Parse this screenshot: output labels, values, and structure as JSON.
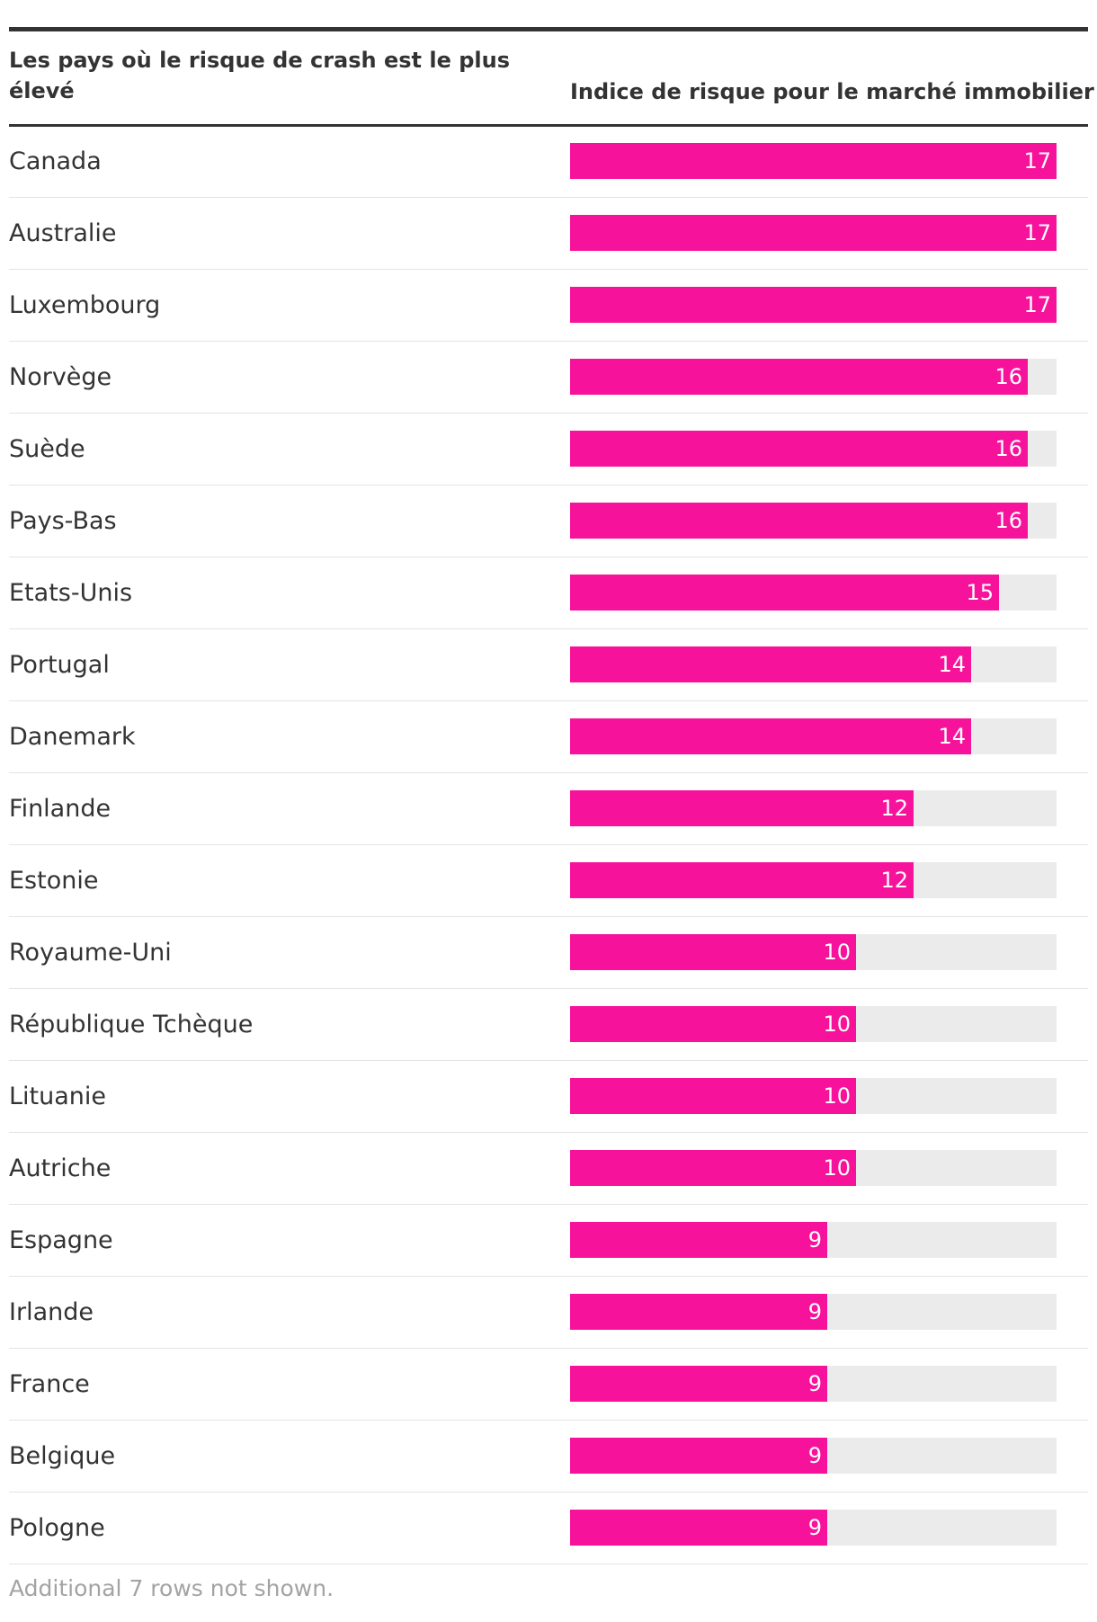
{
  "header": {
    "country_column": "Les pays où le risque de crash est le plus élevé",
    "value_column": "Indice de risque pour le marché immobilier"
  },
  "footnote": "Additional 7 rows not shown.",
  "colors": {
    "bar": "#f7129c",
    "track": "#ebebeb",
    "text": "#333333"
  },
  "chart_data": {
    "type": "bar",
    "orientation": "horizontal",
    "title": "",
    "xlabel": "Indice de risque pour le marché immobilier",
    "ylabel": "Les pays où le risque de crash est le plus élevé",
    "xlim": [
      0,
      17
    ],
    "categories": [
      "Canada",
      "Australie",
      "Luxembourg",
      "Norvège",
      "Suède",
      "Pays-Bas",
      "Etats-Unis",
      "Portugal",
      "Danemark",
      "Finlande",
      "Estonie",
      "Royaume-Uni",
      "République Tchèque",
      "Lituanie",
      "Autriche",
      "Espagne",
      "Irlande",
      "France",
      "Belgique",
      "Pologne"
    ],
    "values": [
      17,
      17,
      17,
      16,
      16,
      16,
      15,
      14,
      14,
      12,
      12,
      10,
      10,
      10,
      10,
      9,
      9,
      9,
      9,
      9
    ]
  }
}
